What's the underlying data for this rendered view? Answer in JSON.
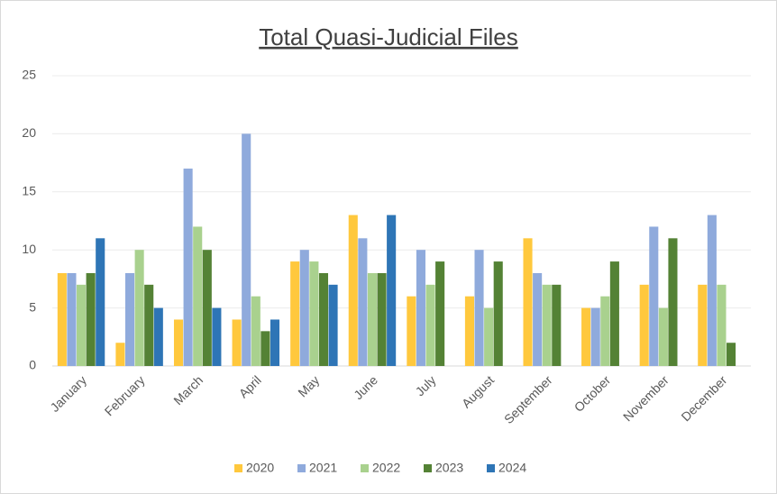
{
  "chart_data": {
    "type": "bar",
    "title": "Total Quasi-Judicial Files",
    "categories": [
      "January",
      "February",
      "March",
      "April",
      "May",
      "June",
      "July",
      "August",
      "September",
      "October",
      "November",
      "December"
    ],
    "series": [
      {
        "name": "2020",
        "color": "#ffc83d",
        "values": [
          8,
          2,
          4,
          4,
          9,
          13,
          6,
          6,
          11,
          5,
          7,
          7
        ]
      },
      {
        "name": "2021",
        "color": "#8faadc",
        "values": [
          8,
          8,
          17,
          20,
          10,
          11,
          10,
          10,
          8,
          5,
          12,
          13
        ]
      },
      {
        "name": "2022",
        "color": "#a9d18e",
        "values": [
          7,
          10,
          12,
          6,
          9,
          8,
          7,
          5,
          7,
          6,
          5,
          7
        ]
      },
      {
        "name": "2023",
        "color": "#548235",
        "values": [
          8,
          7,
          10,
          3,
          8,
          8,
          9,
          9,
          7,
          9,
          11,
          2
        ]
      },
      {
        "name": "2024",
        "color": "#2e75b6",
        "values": [
          11,
          5,
          5,
          4,
          7,
          13,
          null,
          null,
          null,
          null,
          null,
          null
        ]
      }
    ],
    "ylim": [
      0,
      25
    ],
    "yticks": [
      0,
      5,
      10,
      15,
      20,
      25
    ],
    "grid": true,
    "legend": "bottom"
  }
}
